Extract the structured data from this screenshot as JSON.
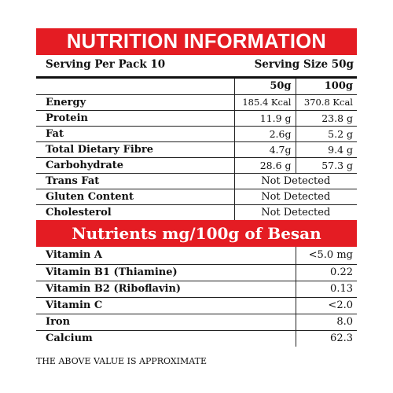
{
  "title": "NUTRITION INFORMATION",
  "serving_per_pack": "Serving Per Pack 10",
  "serving_size": "Serving Size 50g",
  "col_50g": "50g",
  "col_100g": "100g",
  "rows": [
    {
      "label": "Energy",
      "v50": "185.4 Kcal",
      "v100": "370.8 Kcal"
    },
    {
      "label": "Protein",
      "v50": "11.9 g",
      "v100": "23.8 g"
    },
    {
      "label": "Fat",
      "v50": "2.6g",
      "v100": "5.2 g"
    },
    {
      "label": "Total Dietary Fibre",
      "v50": "4.7g",
      "v100": "9.4 g"
    },
    {
      "label": "Carbohydrate",
      "v50": "28.6 g",
      "v100": "57.3 g"
    }
  ],
  "nd_rows": [
    {
      "label": "Trans Fat",
      "value": "Not Detected"
    },
    {
      "label": "Gluten Content",
      "value": "Not Detected"
    },
    {
      "label": "Cholesterol",
      "value": "Not Detected"
    }
  ],
  "nutrients_title": "Nutrients mg/100g of Besan",
  "nutrients": [
    {
      "label": "Vitamin A",
      "value": "<5.0 mg"
    },
    {
      "label": "Vitamin B1 (Thiamine)",
      "value": "0.22"
    },
    {
      "label": "Vitamin B2 (Riboflavin)",
      "value": "0.13"
    },
    {
      "label": "Vitamin C",
      "value": "<2.0"
    },
    {
      "label": "Iron",
      "value": "8.0"
    },
    {
      "label": "Calcium",
      "value": "62.3"
    }
  ],
  "footnote": "THE ABOVE VALUE IS APPROXIMATE",
  "colors": {
    "header_red": "#e41c23"
  }
}
